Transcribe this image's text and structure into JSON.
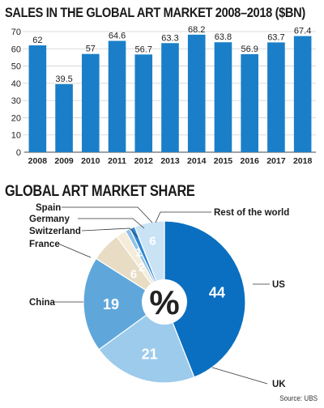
{
  "chart_data": [
    {
      "type": "bar",
      "title": "SALES IN THE GLOBAL ART MARKET 2008–2018 ($BN)",
      "categories": [
        "2008",
        "2009",
        "2010",
        "2011",
        "2012",
        "2013",
        "2014",
        "2015",
        "2016",
        "2017",
        "2018"
      ],
      "values": [
        62,
        39.5,
        57,
        64.6,
        56.7,
        63.3,
        68.2,
        63.8,
        56.9,
        63.7,
        67.4
      ],
      "value_labels": [
        "62",
        "39.5",
        "57",
        "64.6",
        "56.7",
        "63.3",
        "68.2",
        "63.8",
        "56.9",
        "63.7",
        "67.4"
      ],
      "yticks": [
        "0",
        "10",
        "20",
        "30",
        "40",
        "50",
        "60",
        "70"
      ],
      "ylim": [
        0,
        70
      ],
      "bar_color": "#1a7fc8",
      "grid": true
    },
    {
      "type": "pie",
      "title": "GLOBAL ART MARKET SHARE",
      "center_label": "%",
      "slices": [
        {
          "name": "US",
          "value": 44,
          "label": "44",
          "color": "#0a6fc0"
        },
        {
          "name": "UK",
          "value": 21,
          "label": "21",
          "color": "#9ccbec"
        },
        {
          "name": "China",
          "value": 19,
          "label": "19",
          "color": "#5fa7db"
        },
        {
          "name": "France",
          "value": 6,
          "label": "6",
          "color": "#e8dcc4"
        },
        {
          "name": "Switzerland",
          "value": 2,
          "label": "2",
          "color": "#f4ecd8"
        },
        {
          "name": "Germany",
          "value": 1,
          "label": "1",
          "color": "#8fc2e8"
        },
        {
          "name": "Spain",
          "value": 1,
          "label": "",
          "color": "#2f86cf"
        },
        {
          "name": "Rest of the world",
          "value": 6,
          "label": "6",
          "color": "#c9e3f5"
        }
      ]
    }
  ],
  "source": "Source: UBS"
}
